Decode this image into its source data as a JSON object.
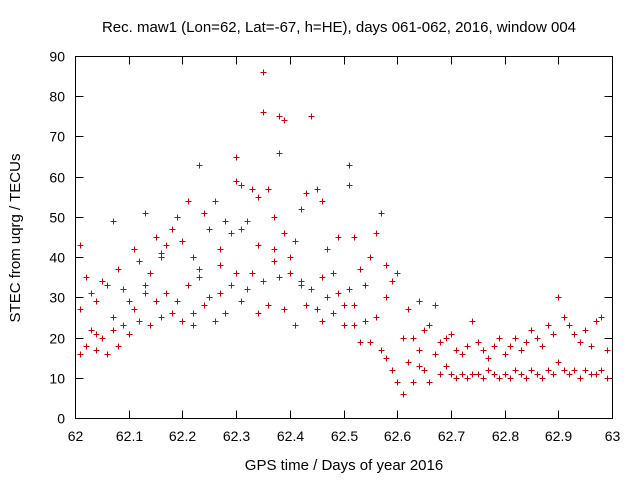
{
  "chart_data": {
    "type": "scatter",
    "title": "Rec. maw1 (Lon=62, Lat=-67, h=HE), days 061-062, 2016, window 004",
    "xlabel": "GPS time / Days of year 2016",
    "ylabel": "STEC from uqrg / TECUs",
    "xlim": [
      62,
      63
    ],
    "ylim": [
      0,
      90
    ],
    "xticks": [
      "62",
      "62.1",
      "62.2",
      "62.3",
      "62.4",
      "62.5",
      "62.6",
      "62.7",
      "62.8",
      "62.9",
      "63"
    ],
    "yticks": [
      "0",
      "10",
      "20",
      "30",
      "40",
      "50",
      "60",
      "70",
      "80",
      "90"
    ],
    "grid": false,
    "marker": "plus",
    "color": "#cc0000",
    "series": [
      {
        "x": [
          62.01,
          62.01,
          62.01,
          62.02,
          62.02,
          62.03,
          62.03,
          62.04,
          62.04,
          62.05,
          62.05,
          62.06,
          62.06,
          62.07,
          62.07,
          62.08,
          62.08,
          62.09,
          62.09,
          62.1,
          62.1,
          62.11,
          62.11,
          62.12,
          62.12,
          62.13,
          62.13,
          62.14,
          62.14,
          62.15,
          62.15,
          62.16,
          62.16,
          62.17,
          62.17,
          62.18,
          62.18,
          62.19,
          62.19,
          62.2,
          62.2,
          62.21,
          62.21,
          62.22,
          62.22,
          62.23,
          62.23,
          62.24,
          62.24,
          62.25,
          62.25,
          62.26,
          62.26,
          62.27,
          62.27,
          62.28,
          62.28,
          62.29,
          62.29,
          62.3,
          62.3,
          62.31,
          62.31,
          62.32,
          62.32,
          62.33,
          62.33,
          62.34,
          62.34,
          62.35,
          62.35,
          62.36,
          62.36,
          62.37,
          62.37,
          62.38,
          62.38,
          62.39,
          62.39,
          62.4,
          62.4,
          62.41,
          62.41,
          62.42,
          62.42,
          62.43,
          62.43,
          62.44,
          62.44,
          62.45,
          62.45,
          62.46,
          62.46,
          62.47,
          62.47,
          62.48,
          62.48,
          62.49,
          62.49,
          62.5,
          62.5,
          62.51,
          62.51,
          62.52,
          62.52,
          62.53,
          62.53,
          62.54,
          62.54,
          62.55,
          62.55,
          62.56,
          62.56,
          62.57,
          62.57,
          62.58,
          62.58,
          62.59,
          62.59,
          62.6,
          62.6,
          62.61,
          62.61,
          62.62,
          62.62,
          62.63,
          62.63,
          62.64,
          62.64,
          62.65,
          62.65,
          62.66,
          62.66,
          62.67,
          62.67,
          62.68,
          62.68,
          62.69,
          62.69,
          62.7,
          62.7,
          62.71,
          62.71,
          62.72,
          62.72,
          62.73,
          62.73,
          62.74,
          62.74,
          62.75,
          62.75,
          62.76,
          62.76,
          62.77,
          62.77,
          62.78,
          62.78,
          62.79,
          62.79,
          62.8,
          62.8,
          62.81,
          62.81,
          62.82,
          62.82,
          62.83,
          62.83,
          62.84,
          62.84,
          62.85,
          62.85,
          62.86,
          62.86,
          62.87,
          62.87,
          62.88,
          62.88,
          62.89,
          62.89,
          62.9,
          62.9,
          62.91,
          62.91,
          62.92,
          62.92,
          62.93,
          62.93,
          62.94,
          62.94,
          62.95,
          62.95,
          62.96,
          62.96,
          62.97,
          62.97,
          62.98,
          62.98,
          62.99,
          62.99,
          62.22,
          62.3,
          62.35,
          62.38,
          62.39,
          62.45,
          62.51,
          62.04,
          62.07,
          62.13,
          62.16,
          62.23,
          62.27,
          62.31,
          62.34,
          62.37,
          62.42,
          62.46,
          62.52,
          62.58,
          62.64
        ],
        "y": [
          43,
          27,
          16,
          35,
          18,
          31,
          22,
          29,
          17,
          34,
          20,
          33,
          16,
          49,
          25,
          37,
          18,
          32,
          23,
          29,
          21,
          42,
          27,
          39,
          24,
          51,
          33,
          36,
          23,
          45,
          29,
          41,
          25,
          43,
          31,
          47,
          26,
          50,
          29,
          44,
          24,
          54,
          33,
          40,
          26,
          63,
          37,
          51,
          28,
          47,
          30,
          54,
          24,
          42,
          31,
          49,
          26,
          46,
          33,
          59,
          36,
          58,
          29,
          49,
          32,
          57,
          36,
          43,
          26,
          86,
          34,
          57,
          28,
          50,
          39,
          75,
          35,
          46,
          27,
          40,
          36,
          44,
          23,
          52,
          34,
          56,
          28,
          75,
          32,
          57,
          27,
          54,
          24,
          42,
          30,
          36,
          26,
          45,
          31,
          28,
          23,
          63,
          32,
          45,
          23,
          37,
          19,
          33,
          24,
          40,
          19,
          46,
          25,
          51,
          17,
          38,
          15,
          34,
          12,
          36,
          9,
          20,
          6,
          27,
          14,
          20,
          9,
          29,
          13,
          22,
          12,
          23,
          9,
          28,
          16,
          19,
          11,
          20,
          13,
          21,
          11,
          17,
          10,
          16,
          11,
          18,
          10,
          24,
          11,
          19,
          11,
          17,
          10,
          15,
          12,
          18,
          11,
          20,
          10,
          16,
          11,
          18,
          10,
          20,
          12,
          17,
          11,
          19,
          10,
          22,
          12,
          20,
          11,
          18,
          10,
          23,
          12,
          21,
          11,
          30,
          14,
          25,
          12,
          23,
          11,
          21,
          12,
          19,
          10,
          22,
          12,
          18,
          11,
          24,
          11,
          25,
          12,
          17,
          10,
          23,
          65,
          76,
          66,
          74,
          57,
          58,
          21,
          22,
          31,
          40,
          35,
          38,
          47,
          55,
          42,
          33,
          35,
          28,
          30,
          17
        ]
      }
    ]
  }
}
